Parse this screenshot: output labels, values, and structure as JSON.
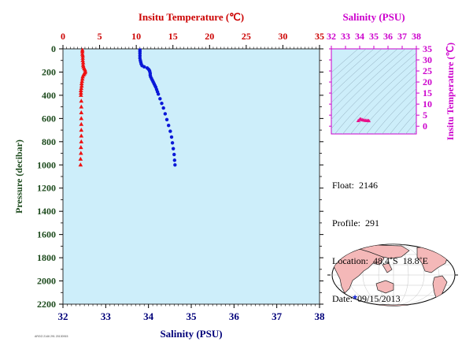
{
  "chart_data": [
    {
      "type": "scatter",
      "title": "",
      "left_label": "Pressure (decibar)",
      "top_label": "Insitu Temperature (℃)",
      "bottom_label": "Salinity (PSU)",
      "pressure_ticks": [
        "0",
        "200",
        "400",
        "600",
        "800",
        "1000",
        "1200",
        "1400",
        "1600",
        "1800",
        "2000",
        "2200"
      ],
      "ylim": [
        0,
        2200
      ],
      "y_reversed": true,
      "temperature_ticks": [
        "0",
        "5",
        "10",
        "15",
        "20",
        "25",
        "30",
        "35"
      ],
      "temperature_lim": [
        0,
        35
      ],
      "salinity_ticks": [
        "32",
        "33",
        "34",
        "35",
        "36",
        "37",
        "38"
      ],
      "salinity_lim": [
        32,
        38
      ],
      "colors": {
        "background": "#cdeefa",
        "temperature": "#ee1111",
        "salinity": "#0a18d8",
        "temp_axis": "#cc0000",
        "sal_axis": "#00007a",
        "pressure_axis": "#1c4a1c"
      },
      "series": [
        {
          "name": "Temperature",
          "points": [
            [
              2.65,
              10
            ],
            [
              2.65,
              25
            ],
            [
              2.65,
              45
            ],
            [
              2.7,
              60
            ],
            [
              2.7,
              80
            ],
            [
              2.7,
              100
            ],
            [
              2.75,
              120
            ],
            [
              2.75,
              140
            ],
            [
              2.8,
              155
            ],
            [
              2.9,
              170
            ],
            [
              3.0,
              180
            ],
            [
              3.05,
              195
            ],
            [
              3.0,
              205
            ],
            [
              2.9,
              215
            ],
            [
              2.8,
              225
            ],
            [
              2.7,
              240
            ],
            [
              2.65,
              260
            ],
            [
              2.6,
              280
            ],
            [
              2.55,
              300
            ],
            [
              2.55,
              320
            ],
            [
              2.5,
              340
            ],
            [
              2.45,
              360
            ],
            [
              2.45,
              380
            ],
            [
              2.45,
              400
            ],
            [
              2.5,
              450
            ],
            [
              2.5,
              500
            ],
            [
              2.5,
              550
            ],
            [
              2.5,
              600
            ],
            [
              2.5,
              650
            ],
            [
              2.5,
              700
            ],
            [
              2.5,
              750
            ],
            [
              2.5,
              800
            ],
            [
              2.45,
              850
            ],
            [
              2.45,
              900
            ],
            [
              2.4,
              950
            ],
            [
              2.4,
              1000
            ]
          ]
        },
        {
          "name": "Salinity",
          "points": [
            [
              33.8,
              10
            ],
            [
              33.8,
              25
            ],
            [
              33.8,
              40
            ],
            [
              33.8,
              60
            ],
            [
              33.8,
              80
            ],
            [
              33.81,
              100
            ],
            [
              33.82,
              115
            ],
            [
              33.83,
              130
            ],
            [
              33.85,
              145
            ],
            [
              33.9,
              155
            ],
            [
              33.97,
              165
            ],
            [
              34.0,
              175
            ],
            [
              34.02,
              185
            ],
            [
              34.03,
              195
            ],
            [
              34.04,
              210
            ],
            [
              34.04,
              225
            ],
            [
              34.05,
              240
            ],
            [
              34.07,
              255
            ],
            [
              34.09,
              270
            ],
            [
              34.11,
              285
            ],
            [
              34.13,
              300
            ],
            [
              34.15,
              315
            ],
            [
              34.17,
              330
            ],
            [
              34.19,
              350
            ],
            [
              34.21,
              370
            ],
            [
              34.23,
              390
            ],
            [
              34.27,
              430
            ],
            [
              34.31,
              470
            ],
            [
              34.35,
              510
            ],
            [
              34.39,
              560
            ],
            [
              34.43,
              610
            ],
            [
              34.47,
              660
            ],
            [
              34.51,
              710
            ],
            [
              34.54,
              760
            ],
            [
              34.56,
              810
            ],
            [
              34.58,
              860
            ],
            [
              34.6,
              910
            ],
            [
              34.61,
              960
            ],
            [
              34.62,
              1000
            ]
          ]
        }
      ]
    },
    {
      "type": "scatter",
      "title": "",
      "top_label": "Salinity (PSU)",
      "right_label": "Insitu Temperature (℃)",
      "salinity_ticks": [
        "32",
        "33",
        "34",
        "35",
        "36",
        "37",
        "38"
      ],
      "salinity_lim": [
        32,
        38
      ],
      "temperature_ticks": [
        "0",
        "5",
        "10",
        "15",
        "20",
        "25",
        "30",
        "35"
      ],
      "temperature_lim": [
        -3.5,
        35
      ],
      "colors": {
        "background": "#cdeefa",
        "points": "#e8128a",
        "axis": "#cc00cc",
        "contours": "#8aa6b8"
      },
      "series": [
        {
          "name": "T-S",
          "points": [
            [
              33.9,
              2.5
            ],
            [
              34.0,
              3.0
            ],
            [
              34.05,
              3.2
            ],
            [
              34.1,
              3.1
            ],
            [
              34.2,
              2.9
            ],
            [
              34.3,
              2.7
            ],
            [
              34.4,
              2.6
            ],
            [
              34.5,
              2.55
            ],
            [
              34.6,
              2.5
            ],
            [
              34.65,
              2.45
            ]
          ]
        }
      ]
    }
  ],
  "info": {
    "float": "Float:  2146",
    "profile": "Profile:  291",
    "location": "Location:  48.4˚S  18.8˚E",
    "date": "Date:  09/15/2013"
  },
  "map": {
    "marker_color": "#1a2ad8"
  },
  "footer": {
    "small_text": "ARGO 2146 291 20130915"
  }
}
